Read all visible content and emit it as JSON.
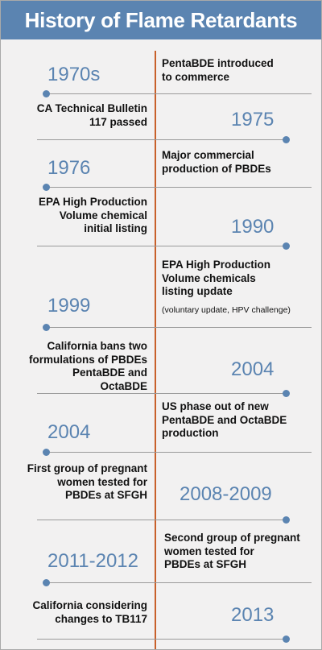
{
  "title": "History of Flame Retardants",
  "colors": {
    "accent": "#5b84b1",
    "line": "#c8602a",
    "background": "#f2f1f1"
  },
  "events": [
    {
      "year": "1970s",
      "text": "PentaBDE introduced\nto commerce"
    },
    {
      "year": "1975",
      "text": "CA Technical Bulletin\n117 passed"
    },
    {
      "year": "1976",
      "text": "Major commercial\nproduction of PBDEs"
    },
    {
      "year": "1990",
      "text": "EPA High Production\nVolume chemical\ninitial listing"
    },
    {
      "year": "1999",
      "text": "EPA High Production\nVolume chemicals\nlisting update",
      "note": "(voluntary update, HPV challenge)"
    },
    {
      "year": "2004",
      "text": "California bans two\nformulations of PBDEs\nPentaBDE and OctaBDE"
    },
    {
      "year": "2004",
      "text": "US phase out of new\nPentaBDE and OctaBDE\nproduction"
    },
    {
      "year": "2008-2009",
      "text": "First group of pregnant\nwomen tested for\nPBDEs at SFGH"
    },
    {
      "year": "2011-2012",
      "text": "Second group of pregnant\nwomen tested for\nPBDEs at SFGH"
    },
    {
      "year": "2013",
      "text": "California considering\nchanges to TB117"
    }
  ]
}
